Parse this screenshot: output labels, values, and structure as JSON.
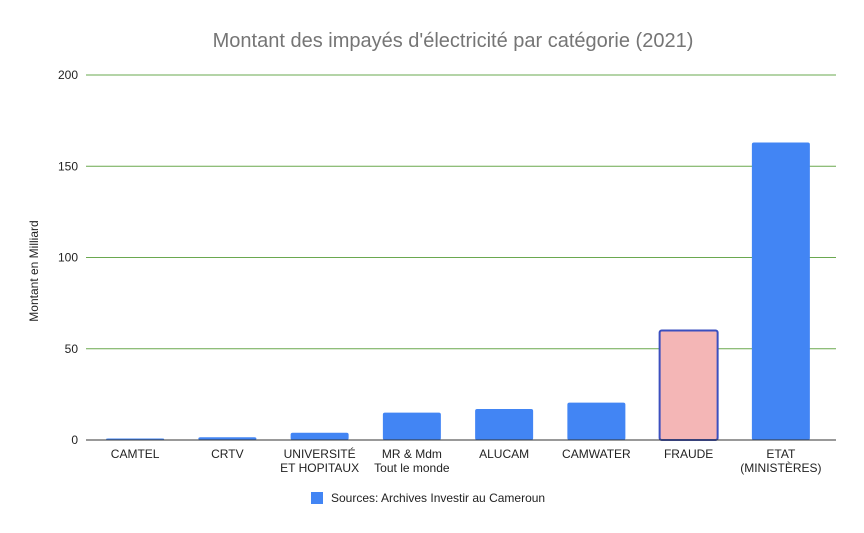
{
  "chart_data": {
    "type": "bar",
    "title": "Montant des impayés d'électricité par catégorie (2021)",
    "xlabel": "",
    "ylabel": "Montant en Milliard",
    "ylim": [
      0,
      200
    ],
    "yticks": [
      0,
      50,
      100,
      150,
      200
    ],
    "grid": true,
    "legend_position": "bottom",
    "categories": [
      [
        "CAMTEL"
      ],
      [
        "CRTV"
      ],
      [
        "UNIVERSITÉ",
        "ET HOPITAUX"
      ],
      [
        "MR & Mdm",
        "Tout le monde"
      ],
      [
        "ALUCAM"
      ],
      [
        "CAMWATER"
      ],
      [
        "FRAUDE"
      ],
      [
        "ETAT",
        "(MINISTÈRES)"
      ]
    ],
    "series": [
      {
        "name": "Sources: Archives Investir au Cameroun",
        "values": [
          0.8,
          1.5,
          4,
          15,
          17,
          20.5,
          60,
          163
        ]
      }
    ],
    "colors": {
      "bar": "#4285f4",
      "highlight_fill": "#f4b6b6",
      "highlight_stroke": "#3b4fbf",
      "grid": "#6aa84f",
      "axis": "#333333"
    },
    "highlight_index": 6
  }
}
